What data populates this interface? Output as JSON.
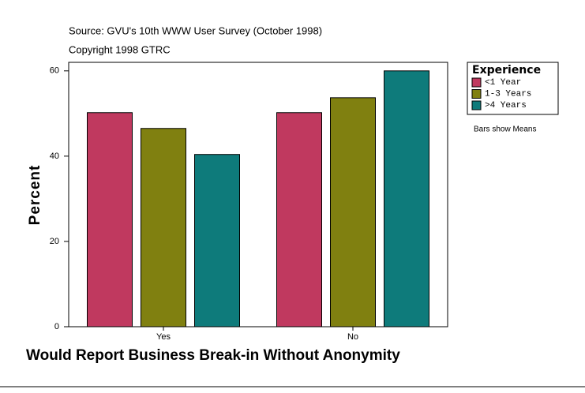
{
  "chart_data": {
    "type": "bar",
    "source": "Source: GVU's 10th WWW User Survey (October 1998)",
    "copyright": "Copyright 1998 GTRC",
    "xlabel": "Would Report Business Break-in Without Anonymity",
    "ylabel": "Percent",
    "categories": [
      "Yes",
      "No"
    ],
    "series": [
      {
        "name": "<1 Year",
        "color": "#c0395f",
        "values": [
          50.2,
          50.2
        ]
      },
      {
        "name": "1-3 Years",
        "color": "#808010",
        "values": [
          46.5,
          53.7
        ]
      },
      {
        "name": ">4 Years",
        "color": "#0e7b7b",
        "values": [
          40.4,
          60.0
        ]
      }
    ],
    "ylim": [
      0,
      62
    ],
    "yticks": [
      0,
      20,
      40,
      60
    ],
    "legend_title": "Experience",
    "legend_position": "right",
    "note": "Bars show Means"
  }
}
